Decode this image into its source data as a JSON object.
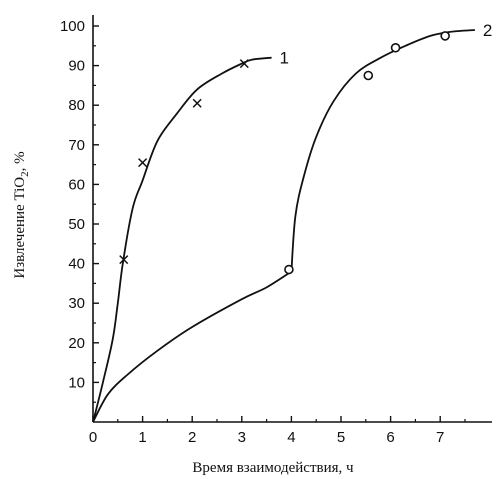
{
  "chart_data": {
    "type": "line",
    "xlabel": "Время взаимодействия, ч",
    "ylabel_main": "Извлечение TiO",
    "ylabel_sub": "2",
    "ylabel_tail": ", %",
    "xlim": [
      0,
      8
    ],
    "ylim": [
      0,
      100
    ],
    "x_ticks": [
      "0",
      "1",
      "2",
      "3",
      "4",
      "5",
      "6",
      "7"
    ],
    "y_ticks": [
      "10",
      "20",
      "30",
      "40",
      "50",
      "60",
      "70",
      "80",
      "90",
      "100"
    ],
    "grid": false,
    "series": [
      {
        "name": "1",
        "curve": [
          [
            0,
            0
          ],
          [
            0.2,
            10
          ],
          [
            0.4,
            21
          ],
          [
            0.5,
            30
          ],
          [
            0.6,
            40
          ],
          [
            0.8,
            54
          ],
          [
            1,
            61
          ],
          [
            1.3,
            71
          ],
          [
            1.7,
            78
          ],
          [
            2.1,
            84
          ],
          [
            2.6,
            88
          ],
          [
            3.0,
            90.5
          ],
          [
            3.2,
            91.5
          ],
          [
            3.6,
            92
          ]
        ],
        "markers": [
          [
            0.62,
            41
          ],
          [
            1.0,
            65.5
          ],
          [
            2.1,
            80.5
          ],
          [
            3.05,
            90.5
          ]
        ],
        "marker": "x"
      },
      {
        "name": "2",
        "curve": [
          [
            0,
            0
          ],
          [
            0.3,
            7
          ],
          [
            0.7,
            12
          ],
          [
            1.3,
            18
          ],
          [
            2.0,
            24
          ],
          [
            3.0,
            31
          ],
          [
            3.5,
            34
          ],
          [
            4.0,
            38
          ],
          [
            4.08,
            52
          ],
          [
            4.25,
            62
          ],
          [
            4.5,
            72
          ],
          [
            4.85,
            81
          ],
          [
            5.3,
            88
          ],
          [
            5.8,
            92
          ],
          [
            6.3,
            95
          ],
          [
            6.8,
            97.5
          ],
          [
            7.2,
            98.5
          ],
          [
            7.7,
            99
          ]
        ],
        "markers": [
          [
            3.95,
            38.5
          ],
          [
            5.55,
            87.5
          ],
          [
            6.1,
            94.5
          ],
          [
            7.1,
            97.5
          ]
        ],
        "marker": "o"
      }
    ]
  }
}
